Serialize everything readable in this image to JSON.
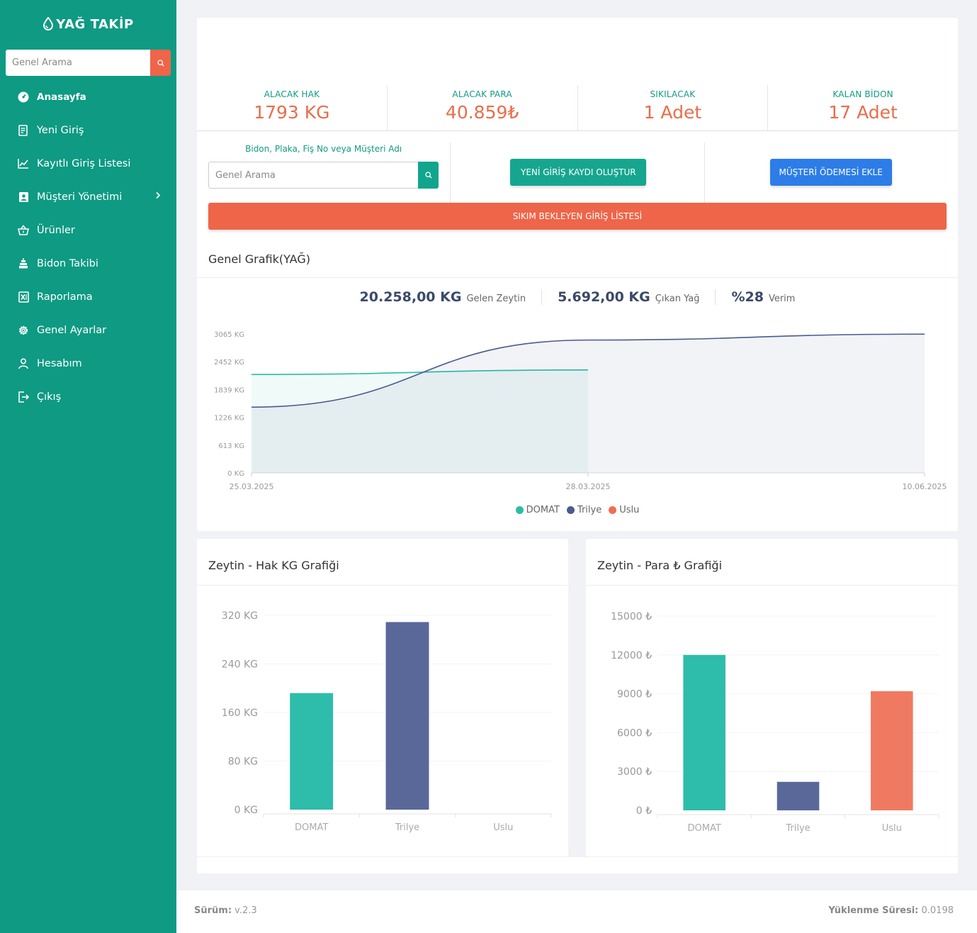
{
  "app": {
    "brand": "YAĞ TAKİP"
  },
  "sidebar": {
    "search_placeholder": "Genel Arama",
    "items": [
      {
        "label": "Anasayfa",
        "icon": "dashboard-icon",
        "active": true
      },
      {
        "label": "Yeni Giriş",
        "icon": "document-icon"
      },
      {
        "label": "Kayıtlı Giriş Listesi",
        "icon": "line-chart-icon"
      },
      {
        "label": "Müşteri Yönetimi",
        "icon": "contact-card-icon",
        "has_submenu": true
      },
      {
        "label": "Ürünler",
        "icon": "basket-icon"
      },
      {
        "label": "Bidon Takibi",
        "icon": "stack-icon"
      },
      {
        "label": "Raporlama",
        "icon": "excel-icon"
      },
      {
        "label": "Genel Ayarlar",
        "icon": "gear-icon"
      },
      {
        "label": "Hesabım",
        "icon": "user-icon"
      },
      {
        "label": "Çıkış",
        "icon": "logout-icon"
      }
    ]
  },
  "stats": [
    {
      "label": "ALACAK HAK",
      "value": "1793 KG"
    },
    {
      "label": "ALACAK PARA",
      "value": "40.859₺"
    },
    {
      "label": "SIKILACAK",
      "value": "1 Adet"
    },
    {
      "label": "KALAN BİDON",
      "value": "17 Adet"
    }
  ],
  "actions": {
    "search_label": "Bidon, Plaka, Fiş No veya Müşteri Adı",
    "search_placeholder": "Genel Arama",
    "new_entry_button": "YENİ GİRİŞ KAYDI OLUŞTUR",
    "customer_payment_button": "MÜŞTERİ ÖDEMESİ EKLE",
    "pending_list_button": "SIKIM BEKLEYEN GİRİŞ LİSTESİ"
  },
  "general_chart": {
    "title": "Genel Grafik(YAĞ)",
    "summary": [
      {
        "value": "20.258,00 KG",
        "label": "Gelen Zeytin"
      },
      {
        "value": "5.692,00 KG",
        "label": "Çıkan Yağ"
      },
      {
        "value": "%28",
        "label": "Verim"
      }
    ]
  },
  "hak_chart": {
    "title": "Zeytin - Hak KG Grafiği"
  },
  "para_chart": {
    "title": "Zeytin - Para ₺ Grafiği"
  },
  "chart_data": [
    {
      "type": "area",
      "x": [
        "25.03.2025",
        "28.03.2025",
        "10.06.2025"
      ],
      "y_ticks": [
        "0 KG",
        "613 KG",
        "1226 KG",
        "1839 KG",
        "2452 KG",
        "3065 KG"
      ],
      "ylim": [
        0,
        3065
      ],
      "series": [
        {
          "name": "DOMAT",
          "color": "#2bbca5",
          "values": [
            2170,
            2270,
            null
          ]
        },
        {
          "name": "Trilye",
          "color": "#4c5a8c",
          "values": [
            1450,
            2930,
            3060
          ]
        },
        {
          "name": "Uslu",
          "color": "#ee6e52",
          "values": [
            null,
            null,
            null
          ]
        }
      ],
      "legend": "bottom-center",
      "grid": false
    },
    {
      "type": "bar",
      "categories": [
        "DOMAT",
        "Trilye",
        "Uslu"
      ],
      "values": [
        192,
        309,
        0
      ],
      "colors": [
        "#2dbdaa",
        "#5a6899",
        "#f07a61"
      ],
      "y_ticks": [
        "0 KG",
        "80 KG",
        "160 KG",
        "240 KG",
        "320 KG"
      ],
      "ylim": [
        0,
        320
      ]
    },
    {
      "type": "bar",
      "categories": [
        "DOMAT",
        "Trilye",
        "Uslu"
      ],
      "values": [
        12000,
        2200,
        9200
      ],
      "colors": [
        "#2dbdaa",
        "#5a6899",
        "#f07a61"
      ],
      "y_ticks": [
        "0 ₺",
        "3000 ₺",
        "6000 ₺",
        "9000 ₺",
        "12000 ₺",
        "15000 ₺"
      ],
      "ylim": [
        0,
        15000
      ]
    }
  ],
  "footer": {
    "version_label": "Sürüm:",
    "version": "v.2.3",
    "load_label": "Yüklenme Süresi:",
    "load_time": "0.0198"
  }
}
